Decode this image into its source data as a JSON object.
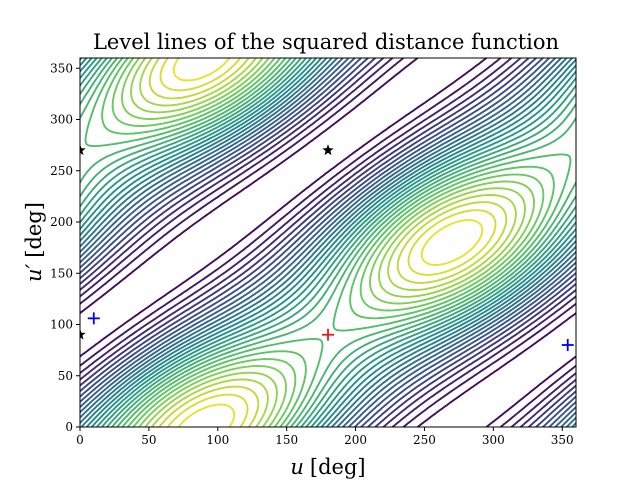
{
  "chart_data": {
    "type": "contour",
    "title": "Level lines of the squared distance function",
    "xlabel_main": "u",
    "xlabel_unit": "[deg]",
    "ylabel_main": "u′",
    "ylabel_unit": "[deg]",
    "xlim": [
      0,
      360
    ],
    "ylim": [
      0,
      360
    ],
    "xticks": [
      0,
      50,
      100,
      150,
      200,
      250,
      300,
      350
    ],
    "yticks": [
      0,
      50,
      100,
      150,
      200,
      250,
      300,
      350
    ],
    "colormap": [
      "#440154",
      "#3b528b",
      "#21918c",
      "#5ec962",
      "#fde725"
    ],
    "num_levels": 30,
    "markers": [
      {
        "kind": "plus",
        "color": "#e41a1c",
        "x": 180,
        "y": 90
      },
      {
        "kind": "plus",
        "color": "#0000ff",
        "x": 10,
        "y": 106
      },
      {
        "kind": "plus",
        "color": "#0000ff",
        "x": 354,
        "y": 80
      },
      {
        "kind": "star",
        "color": "#000000",
        "x": 180,
        "y": 270
      },
      {
        "kind": "star",
        "color": "#000000",
        "x": 0,
        "y": 270
      },
      {
        "kind": "star",
        "color": "#000000",
        "x": 0,
        "y": 90
      }
    ]
  }
}
